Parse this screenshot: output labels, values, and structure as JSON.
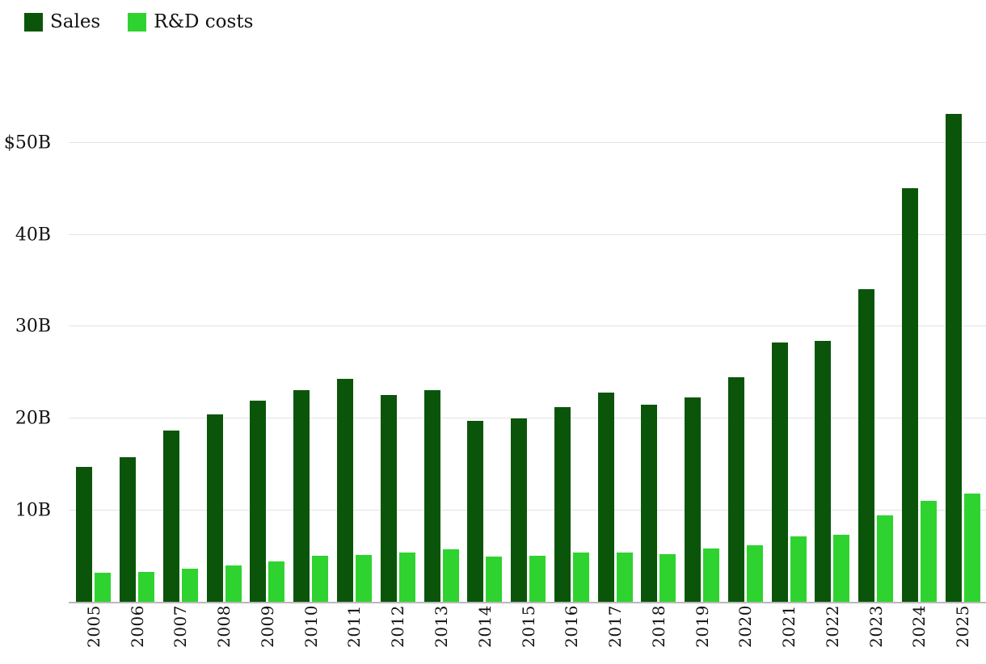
{
  "legend": {
    "items": [
      {
        "label": "Sales",
        "color": "#0a550a"
      },
      {
        "label": "R&D costs",
        "color": "#2fd32f"
      }
    ]
  },
  "chart_data": {
    "type": "bar",
    "title": "",
    "xlabel": "",
    "ylabel": "",
    "categories": [
      "2005",
      "2006",
      "2007",
      "2008",
      "2009",
      "2010",
      "2011",
      "2012",
      "2013",
      "2014",
      "2015",
      "2016",
      "2017",
      "2018",
      "2019",
      "2020",
      "2021",
      "2022",
      "2023",
      "2024",
      "2025"
    ],
    "series": [
      {
        "name": "Sales",
        "color": "#0a550a",
        "values": [
          14.7,
          15.8,
          18.7,
          20.4,
          21.9,
          23.1,
          24.3,
          22.6,
          23.1,
          19.7,
          20.0,
          21.2,
          22.8,
          21.5,
          22.3,
          24.5,
          28.3,
          28.5,
          34.1,
          45.1,
          53.2
        ]
      },
      {
        "name": "R&D costs",
        "color": "#2fd32f",
        "values": [
          3.2,
          3.3,
          3.6,
          4.0,
          4.4,
          5.0,
          5.1,
          5.4,
          5.7,
          4.9,
          5.0,
          5.4,
          5.4,
          5.2,
          5.8,
          6.2,
          7.1,
          7.3,
          9.4,
          11.0,
          11.8
        ]
      }
    ],
    "ylim": [
      0,
      55.5
    ],
    "yticks": [
      {
        "value": 10,
        "label": "10B"
      },
      {
        "value": 20,
        "label": "20B"
      },
      {
        "value": 30,
        "label": "30B"
      },
      {
        "value": 40,
        "label": "40B"
      },
      {
        "value": 50,
        "label": "$50B"
      }
    ],
    "grid": true,
    "legend_position": "top-left"
  }
}
